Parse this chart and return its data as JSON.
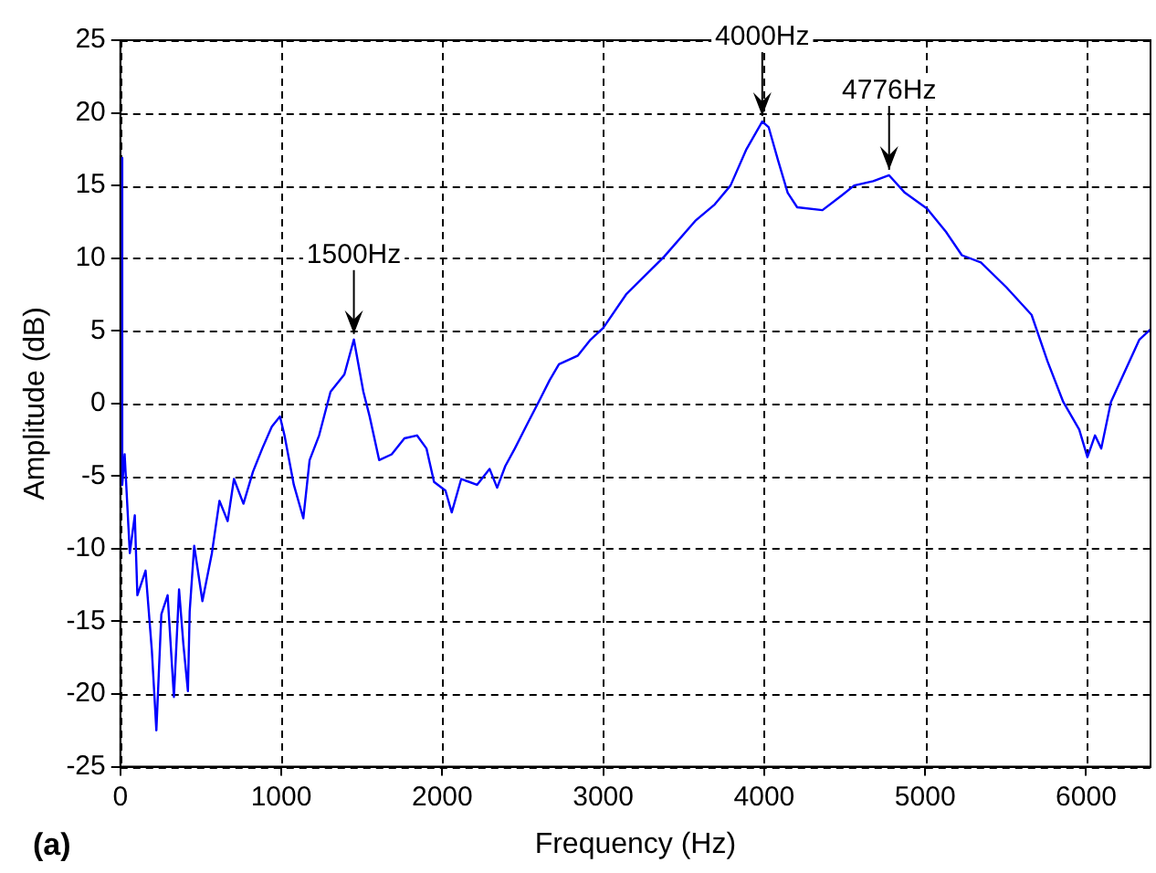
{
  "chart_data": {
    "type": "line",
    "xlabel": "Frequency (Hz)",
    "ylabel": "Amplitude (dB)",
    "series": [
      {
        "color": "#0000ff",
        "x": [
          6,
          12,
          27,
          59,
          90,
          106,
          157,
          196,
          224,
          255,
          294,
          333,
          365,
          392,
          420,
          431,
          459,
          510,
          569,
          616,
          667,
          706,
          765,
          824,
          882,
          941,
          992,
          1020,
          1078,
          1137,
          1176,
          1235,
          1306,
          1392,
          1451,
          1510,
          1549,
          1608,
          1686,
          1765,
          1843,
          1902,
          1949,
          2020,
          2059,
          2118,
          2216,
          2294,
          2341,
          2392,
          2451,
          2529,
          2608,
          2667,
          2725,
          2843,
          2922,
          3000,
          3142,
          3378,
          3575,
          3693,
          3791,
          3890,
          3988,
          4028,
          4087,
          4146,
          4205,
          4362,
          4480,
          4559,
          4677,
          4776,
          4874,
          5012,
          5130,
          5228,
          5346,
          5504,
          5661,
          5760,
          5858,
          5957,
          6008,
          6055,
          6094,
          6154,
          6232,
          6331,
          6400
        ],
        "values": [
          16.9,
          -5.6,
          -3.5,
          -10.3,
          -7.7,
          -13.2,
          -11.5,
          -17,
          -22.5,
          -14.5,
          -13.2,
          -20.2,
          -12.8,
          -16.6,
          -19.8,
          -14.3,
          -9.8,
          -13.6,
          -10.3,
          -6.7,
          -8.1,
          -5.2,
          -6.9,
          -4.7,
          -3.1,
          -1.6,
          -0.9,
          -2.2,
          -5.6,
          -7.9,
          -3.9,
          -2.2,
          0.8,
          2.0,
          4.4,
          0.8,
          -0.9,
          -3.9,
          -3.5,
          -2.4,
          -2.2,
          -3.1,
          -5.4,
          -6.0,
          -7.5,
          -5.2,
          -5.6,
          -4.5,
          -5.8,
          -4.3,
          -3.1,
          -1.4,
          0.3,
          1.6,
          2.7,
          3.3,
          4.4,
          5.2,
          7.5,
          10.1,
          12.6,
          13.7,
          15.0,
          17.5,
          19.4,
          19.0,
          16.7,
          14.5,
          13.5,
          13.3,
          14.3,
          15.0,
          15.3,
          15.7,
          14.5,
          13.4,
          11.8,
          10.2,
          9.7,
          8.0,
          6.1,
          2.9,
          0.1,
          -1.8,
          -3.7,
          -2.2,
          -3.1,
          0.1,
          2.0,
          4.4,
          5.1
        ]
      }
    ],
    "xlim": [
      0,
      6400
    ],
    "xticks": [
      0,
      1000,
      2000,
      3000,
      4000,
      5000,
      6000
    ],
    "ylim": [
      -25,
      25
    ],
    "yticks": [
      -25,
      -20,
      -15,
      -10,
      -5,
      0,
      5,
      10,
      15,
      20,
      25
    ],
    "grid": true,
    "legend": false,
    "marker": "none",
    "line_style": "solid",
    "annotations": [
      {
        "text": "1500Hz",
        "x": 1451,
        "y": 4.4
      },
      {
        "text": "4000Hz",
        "x": 3988,
        "y": 19.4
      },
      {
        "text": "4776Hz",
        "x": 4776,
        "y": 15.7
      },
      "(a)"
    ]
  }
}
